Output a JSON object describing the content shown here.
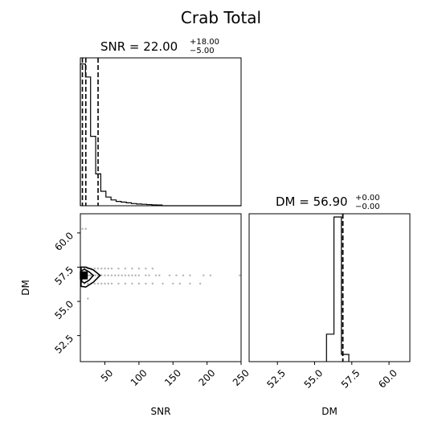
{
  "figure": {
    "title": "Crab Total"
  },
  "chart_data": {
    "type": "corner",
    "panels": [
      {
        "position": "top-left",
        "type": "histogram",
        "title_main": "SNR = 22.00",
        "title_plus": "+18.00",
        "title_minus": "−5.00",
        "xlim": [
          14,
          250
        ],
        "ylim": [
          0,
          1.0
        ],
        "bin_edges": [
          14,
          21.5,
          29,
          36.5,
          44,
          51.5,
          59,
          66.5,
          74,
          81.5,
          89,
          96.5,
          104,
          111.5,
          119,
          126.5,
          134,
          250
        ],
        "counts": [
          0.98,
          0.89,
          0.48,
          0.22,
          0.1,
          0.06,
          0.04,
          0.03,
          0.025,
          0.02,
          0.015,
          0.012,
          0.01,
          0.008,
          0.006,
          0.005,
          0.0
        ],
        "quantile_lines": [
          17,
          22,
          40
        ]
      },
      {
        "position": "bottom-right",
        "type": "histogram",
        "title_main": "DM = 56.90",
        "title_plus": "+0.00",
        "title_minus": "−0.00",
        "xlim": [
          50.6,
          61.4
        ],
        "ylim": [
          0,
          1.0
        ],
        "bin_edges": [
          55.8,
          56.3,
          56.8,
          57.3
        ],
        "counts": [
          0.19,
          1.0,
          0.05
        ],
        "quantile_lines": [
          56.9,
          56.9,
          56.9
        ]
      },
      {
        "position": "bottom-left",
        "type": "scatter_contour",
        "xlabel": "SNR",
        "ylabel": "DM",
        "xlim": [
          14,
          250
        ],
        "ylim": [
          50.6,
          61.4
        ],
        "xticks": [
          50,
          100,
          150,
          200,
          250
        ],
        "yticks": [
          52.5,
          55.0,
          57.5,
          60.0
        ],
        "points": [
          [
            20,
            56.9
          ],
          [
            22,
            56.9
          ],
          [
            25,
            56.9
          ],
          [
            28,
            56.9
          ],
          [
            30,
            56.9
          ],
          [
            33,
            56.9
          ],
          [
            36,
            56.9
          ],
          [
            40,
            56.9
          ],
          [
            45,
            56.9
          ],
          [
            50,
            56.9
          ],
          [
            55,
            56.9
          ],
          [
            60,
            56.9
          ],
          [
            65,
            56.9
          ],
          [
            70,
            56.9
          ],
          [
            75,
            56.9
          ],
          [
            80,
            56.9
          ],
          [
            85,
            56.9
          ],
          [
            90,
            56.9
          ],
          [
            95,
            56.9
          ],
          [
            100,
            56.9
          ],
          [
            110,
            56.9
          ],
          [
            115,
            56.9
          ],
          [
            125,
            56.9
          ],
          [
            130,
            56.9
          ],
          [
            145,
            56.9
          ],
          [
            155,
            56.9
          ],
          [
            165,
            56.9
          ],
          [
            175,
            56.9
          ],
          [
            195,
            56.9
          ],
          [
            205,
            56.9
          ],
          [
            248,
            56.9
          ],
          [
            20,
            57.4
          ],
          [
            25,
            57.4
          ],
          [
            30,
            57.4
          ],
          [
            35,
            57.4
          ],
          [
            40,
            57.4
          ],
          [
            45,
            57.4
          ],
          [
            50,
            57.4
          ],
          [
            55,
            57.4
          ],
          [
            60,
            57.4
          ],
          [
            70,
            57.4
          ],
          [
            80,
            57.4
          ],
          [
            90,
            57.4
          ],
          [
            100,
            57.4
          ],
          [
            110,
            57.4
          ],
          [
            120,
            57.4
          ],
          [
            20,
            56.3
          ],
          [
            25,
            56.3
          ],
          [
            30,
            56.3
          ],
          [
            35,
            56.3
          ],
          [
            40,
            56.3
          ],
          [
            45,
            56.3
          ],
          [
            50,
            56.3
          ],
          [
            55,
            56.3
          ],
          [
            60,
            56.3
          ],
          [
            70,
            56.3
          ],
          [
            80,
            56.3
          ],
          [
            90,
            56.3
          ],
          [
            100,
            56.3
          ],
          [
            110,
            56.3
          ],
          [
            120,
            56.3
          ],
          [
            135,
            56.3
          ],
          [
            150,
            56.3
          ],
          [
            160,
            56.3
          ],
          [
            175,
            56.3
          ],
          [
            190,
            56.3
          ],
          [
            17,
            60.3
          ],
          [
            22,
            60.3
          ],
          [
            25,
            55.2
          ]
        ],
        "contours": [
          [
            [
              16,
              56.45
            ],
            [
              20,
              56.35
            ],
            [
              27,
              56.55
            ],
            [
              33,
              56.9
            ],
            [
              27,
              57.15
            ],
            [
              20,
              57.35
            ],
            [
              16,
              57.25
            ]
          ],
          [
            [
              15,
              56.1
            ],
            [
              22,
              56.05
            ],
            [
              33,
              56.4
            ],
            [
              43,
              56.9
            ],
            [
              33,
              57.3
            ],
            [
              22,
              57.5
            ],
            [
              15,
              57.5
            ]
          ]
        ],
        "core": [
          19,
          56.9
        ]
      }
    ]
  }
}
